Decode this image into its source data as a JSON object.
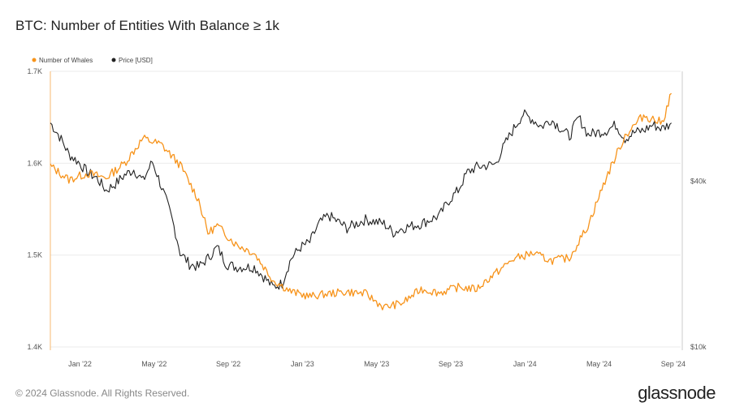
{
  "title": "BTC: Number of Entities With Balance ≥ 1k",
  "footer": {
    "copyright": "© 2024 Glassnode. All Rights Reserved.",
    "brand": "glassnode"
  },
  "colors": {
    "whales": "#f7931a",
    "price": "#222222",
    "grid": "#ebebeb"
  },
  "chart_data": {
    "type": "line",
    "title": "BTC: Number of Entities With Balance ≥ 1k",
    "legend": [
      "Number of Whales",
      "Price [USD]"
    ],
    "legend_position": "top-left",
    "x_ticks": [
      "Jan '22",
      "May '22",
      "Sep '22",
      "Jan '23",
      "May '23",
      "Sep '23",
      "Jan '24",
      "May '24",
      "Sep '24"
    ],
    "x_range": [
      0,
      34
    ],
    "y_left": {
      "label": "Number of Whales",
      "ticks": [
        "1.4K",
        "1.5K",
        "1.6K",
        "1.7K"
      ],
      "tick_values": [
        1400,
        1500,
        1600,
        1700
      ],
      "range": [
        1400,
        1700
      ]
    },
    "y_right": {
      "label": "Price [USD]",
      "scale": "log",
      "ticks": [
        "$10k",
        "$40k"
      ],
      "tick_values": [
        10000,
        40000
      ],
      "range": [
        10000,
        100000
      ]
    },
    "series": [
      {
        "name": "Number of Whales",
        "axis": "left",
        "x": [
          0,
          1,
          2,
          3,
          4,
          5,
          6,
          7,
          8,
          8.5,
          9,
          10,
          11,
          12,
          13,
          14,
          15,
          16,
          17,
          18,
          19,
          20,
          21,
          22,
          23,
          23.5,
          24,
          25,
          26,
          27,
          28,
          29,
          30,
          31,
          32,
          33,
          33.5
        ],
        "values": [
          1597,
          1582,
          1589,
          1584,
          1600,
          1627,
          1620,
          1598,
          1560,
          1524,
          1532,
          1512,
          1502,
          1473,
          1460,
          1455,
          1458,
          1460,
          1458,
          1443,
          1448,
          1463,
          1459,
          1465,
          1463,
          1472,
          1480,
          1496,
          1502,
          1494,
          1497,
          1532,
          1585,
          1630,
          1652,
          1644,
          1676
        ]
      },
      {
        "name": "Price [USD]",
        "axis": "right",
        "x": [
          0,
          0.5,
          1,
          1.5,
          2,
          2.5,
          3,
          3.5,
          4,
          4.5,
          5,
          5.5,
          6,
          6.5,
          7,
          7.5,
          8,
          8.5,
          9,
          9.5,
          10,
          11,
          12,
          12.5,
          13,
          13.5,
          14,
          14.5,
          15,
          16,
          17,
          18,
          18.5,
          19,
          20,
          21,
          21.5,
          22,
          22.5,
          23,
          24,
          25,
          25.5,
          26,
          26.5,
          27,
          28,
          28.5,
          29,
          30,
          30.5,
          31,
          31.5,
          32,
          32.5,
          33,
          33.5
        ],
        "values": [
          65000,
          58000,
          50000,
          47000,
          43000,
          41000,
          37000,
          39000,
          42000,
          44000,
          40000,
          47000,
          38000,
          30000,
          22000,
          20000,
          19500,
          21000,
          23000,
          20000,
          19500,
          19500,
          16500,
          17000,
          21000,
          23000,
          24000,
          28000,
          30000,
          27000,
          29000,
          28000,
          26000,
          27000,
          28000,
          30000,
          34000,
          37000,
          43000,
          45000,
          46000,
          62000,
          70000,
          67000,
          63000,
          67000,
          58000,
          68000,
          59000,
          61000,
          64000,
          57000,
          60000,
          61000,
          64000,
          62000,
          65000
        ]
      }
    ]
  }
}
